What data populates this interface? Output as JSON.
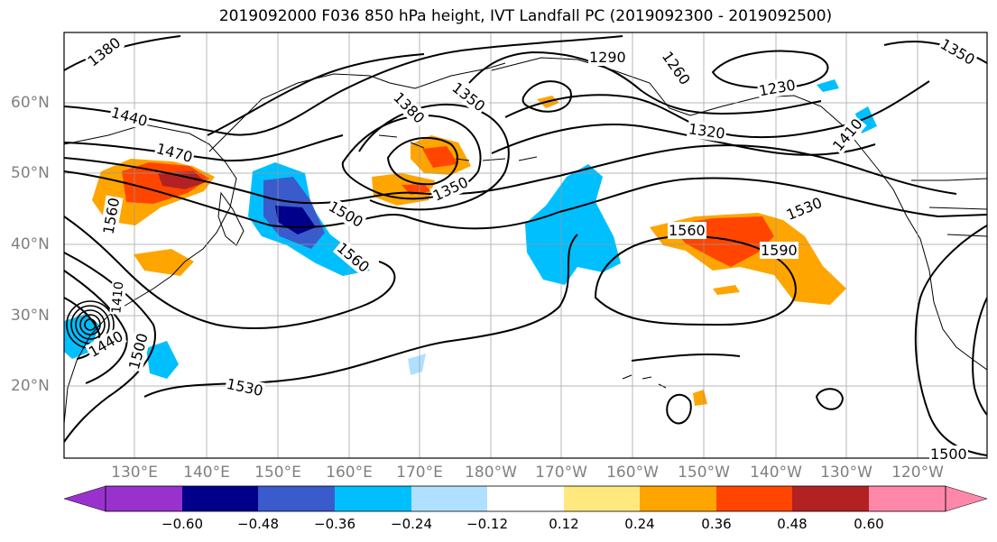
{
  "title": "2019092000 F036 850 hPa height, IVT Landfall PC (2019092300 - 2019092500)",
  "lat_labels": [
    "60°N",
    "50°N",
    "40°N",
    "30°N",
    "20°N"
  ],
  "lon_labels": [
    "130°E",
    "140°E",
    "150°E",
    "160°E",
    "170°E",
    "180°W",
    "170°W",
    "160°W",
    "150°W",
    "140°W",
    "130°W",
    "120°W"
  ],
  "contour_labels": [
    "1380",
    "1290",
    "1260",
    "1350",
    "1230",
    "1440",
    "1380",
    "1320",
    "1470",
    "1410",
    "1350",
    "1500",
    "1530",
    "1560",
    "1560",
    "1590",
    "1560",
    "1500",
    "1440",
    "1530",
    "1500",
    "1410",
    "1350"
  ],
  "colorbar": {
    "ticks": [
      "−0.60",
      "−0.48",
      "−0.36",
      "−0.24",
      "−0.12",
      "0.12",
      "0.24",
      "0.36",
      "0.48",
      "0.60"
    ],
    "colors": [
      "#9932cc",
      "#00008b",
      "#3a5bcc",
      "#00bfff",
      "#b0e0ff",
      "#ffffff",
      "#ffe97f",
      "#ffa500",
      "#ff4500",
      "#b22222",
      "#ff88aa"
    ]
  }
}
